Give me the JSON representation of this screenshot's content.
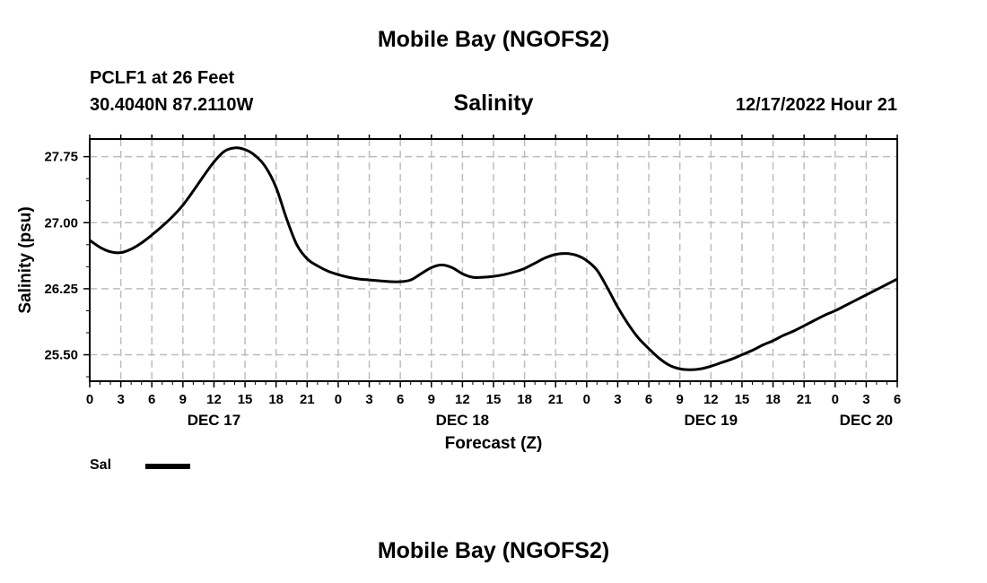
{
  "header": {
    "title": "Mobile Bay (NGOFS2)",
    "station": "PCLF1 at 26 Feet",
    "coords": "30.4040N  87.2110W",
    "chart_title": "Salinity",
    "timestamp": "12/17/2022 Hour 21"
  },
  "footer": {
    "title": "Mobile Bay (NGOFS2)"
  },
  "legend": {
    "label": "Sal",
    "color": "#000000"
  },
  "chart_data": {
    "type": "line",
    "title": "Salinity",
    "xlabel": "Forecast (Z)",
    "ylabel": "Salinity (psu)",
    "xlim": [
      0,
      78
    ],
    "ylim": [
      25.2,
      27.95
    ],
    "yticks": [
      25.5,
      26.25,
      27.0,
      27.75
    ],
    "ytick_labels": [
      "25.50",
      "26.25",
      "27.00",
      "27.75"
    ],
    "xticks": [
      0,
      3,
      6,
      9,
      12,
      15,
      18,
      21,
      24,
      27,
      30,
      33,
      36,
      39,
      42,
      45,
      48,
      51,
      54,
      57,
      60,
      63,
      66,
      69,
      72,
      75,
      78
    ],
    "xtick_labels": [
      "0",
      "3",
      "6",
      "9",
      "12",
      "15",
      "18",
      "21",
      "0",
      "3",
      "6",
      "9",
      "12",
      "15",
      "18",
      "21",
      "0",
      "3",
      "6",
      "9",
      "12",
      "15",
      "18",
      "21",
      "0",
      "3",
      "6"
    ],
    "date_labels": [
      {
        "x": 12,
        "text": "DEC 17"
      },
      {
        "x": 36,
        "text": "DEC 18"
      },
      {
        "x": 60,
        "text": "DEC 19"
      },
      {
        "x": 75,
        "text": "DEC 20"
      }
    ],
    "grid": true,
    "series": [
      {
        "name": "Sal",
        "x": [
          0,
          1,
          2,
          3,
          4,
          5,
          6,
          7,
          8,
          9,
          10,
          11,
          12,
          13,
          14,
          15,
          16,
          17,
          18,
          19,
          20,
          21,
          22,
          23,
          24,
          25,
          26,
          27,
          28,
          29,
          30,
          31,
          32,
          33,
          34,
          35,
          36,
          37,
          38,
          39,
          40,
          41,
          42,
          43,
          44,
          45,
          46,
          47,
          48,
          49,
          50,
          51,
          52,
          53,
          54,
          55,
          56,
          57,
          58,
          59,
          60,
          61,
          62,
          63,
          64,
          65,
          66,
          67,
          68,
          69,
          70,
          71,
          72,
          73,
          74,
          75,
          76,
          77,
          78
        ],
        "values": [
          26.8,
          26.72,
          26.67,
          26.66,
          26.7,
          26.77,
          26.86,
          26.96,
          27.07,
          27.2,
          27.36,
          27.53,
          27.69,
          27.81,
          27.85,
          27.83,
          27.76,
          27.63,
          27.4,
          27.05,
          26.75,
          26.59,
          26.51,
          26.45,
          26.41,
          26.38,
          26.36,
          26.35,
          26.34,
          26.33,
          26.33,
          26.35,
          26.42,
          26.49,
          26.52,
          26.49,
          26.42,
          26.38,
          26.38,
          26.39,
          26.41,
          26.44,
          26.48,
          26.54,
          26.6,
          26.64,
          26.65,
          26.63,
          26.57,
          26.46,
          26.26,
          26.04,
          25.85,
          25.69,
          25.57,
          25.46,
          25.38,
          25.34,
          25.33,
          25.34,
          25.37,
          25.41,
          25.45,
          25.5,
          25.55,
          25.61,
          25.66,
          25.72,
          25.77,
          25.83,
          25.89,
          25.95,
          26.0,
          26.06,
          26.12,
          26.18,
          26.24,
          26.3,
          26.36
        ]
      }
    ]
  }
}
